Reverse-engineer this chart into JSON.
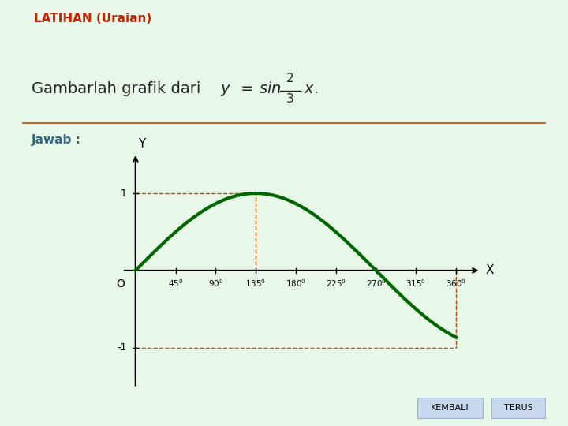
{
  "bg_color": "#e8f8e8",
  "header_color": "#c0d8f0",
  "header_text": "LATIHAN (Uraian)",
  "header_text_color": "#cc2200",
  "text_color": "#222222",
  "jawab_text": "Jawab :",
  "jawab_color": "#336688",
  "curve_color": "#006600",
  "curve_linewidth": 3.0,
  "axis_color": "#000000",
  "dashed_color": "#cc4400",
  "dashed_linewidth": 1.0,
  "tick_values": [
    45,
    90,
    135,
    180,
    225,
    270,
    315,
    360
  ],
  "button_kembali": "KEMBALI",
  "button_terus": "TERUS",
  "button_color": "#c8d8ec",
  "button_border": "#a0b0c8",
  "separator_color": "#cc4400",
  "xlim": [
    -15,
    390
  ],
  "ylim": [
    -1.6,
    1.6
  ]
}
